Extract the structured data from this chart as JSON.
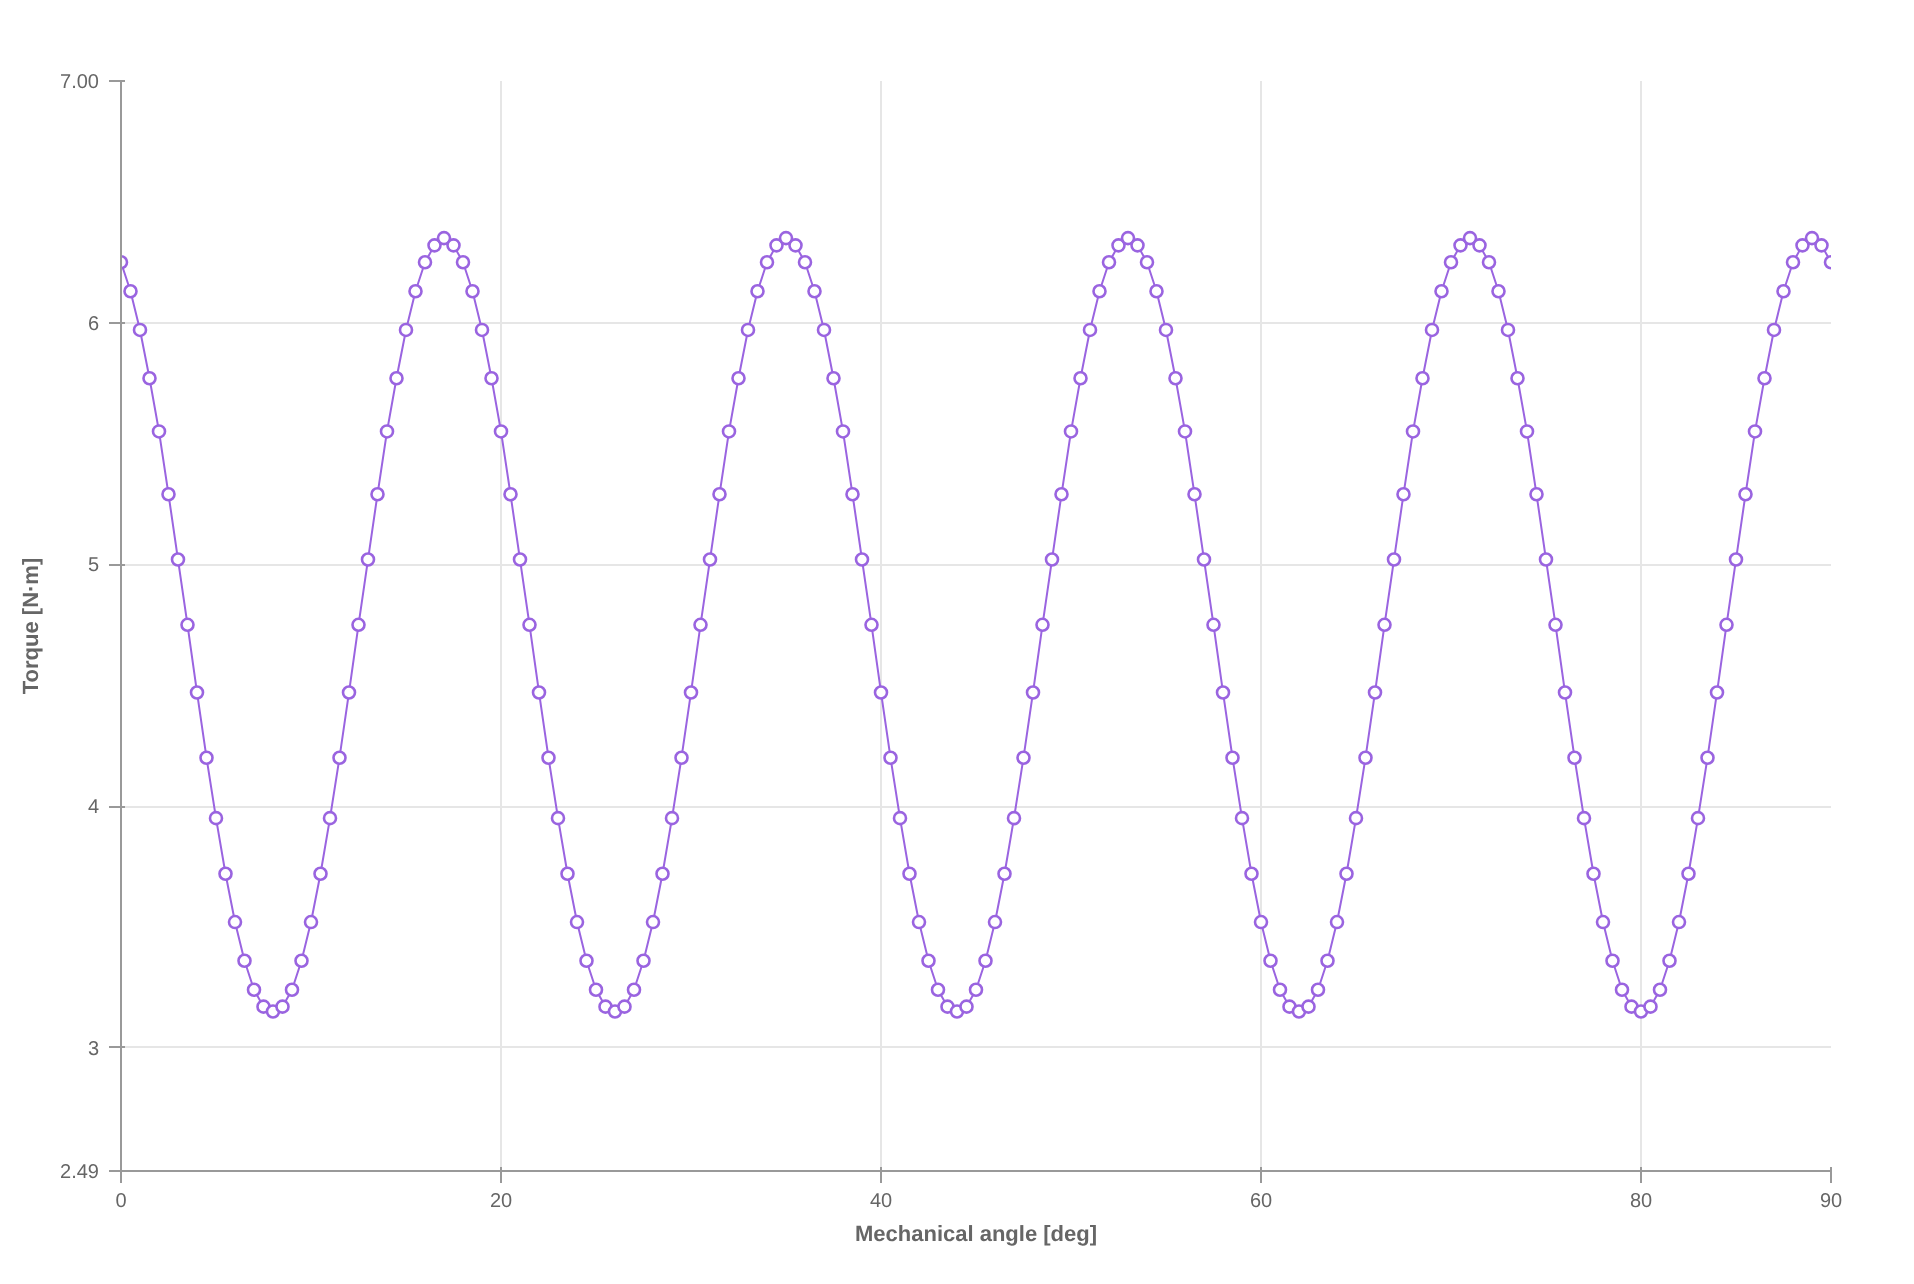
{
  "chart_data": {
    "type": "line",
    "xlabel": "Mechanical angle [deg]",
    "ylabel": "Torque [N·m]",
    "xlim": [
      0,
      90
    ],
    "ylim": [
      2.49,
      7.0
    ],
    "xticks": [
      0,
      20,
      40,
      60,
      80,
      90
    ],
    "yticks": [
      {
        "value": 2.49,
        "label": "2.49"
      },
      3,
      4,
      5,
      6,
      {
        "value": 7.0,
        "label": "7.00"
      }
    ],
    "grid": true,
    "marker": "circle",
    "line_style": "solid",
    "x": [
      0,
      0.5,
      1,
      1.5,
      2,
      2.5,
      3,
      3.5,
      4,
      4.5,
      5,
      5.5,
      6,
      6.5,
      7,
      7.5,
      8,
      8.5,
      9,
      9.5,
      10,
      10.5,
      11,
      11.5,
      12,
      12.5,
      13,
      13.5,
      14,
      14.5,
      15,
      15.5,
      16,
      16.5,
      17,
      17.5,
      18,
      18.5,
      19,
      19.5,
      20,
      20.5,
      21,
      21.5,
      22,
      22.5,
      23,
      23.5,
      24,
      24.5,
      25,
      25.5,
      26,
      26.5,
      27,
      27.5,
      28,
      28.5,
      29,
      29.5,
      30,
      30.5,
      31,
      31.5,
      32,
      32.5,
      33,
      33.5,
      34,
      34.5,
      35,
      35.5,
      36,
      36.5,
      37,
      37.5,
      38,
      38.5,
      39,
      39.5,
      40,
      40.5,
      41,
      41.5,
      42,
      42.5,
      43,
      43.5,
      44,
      44.5,
      45,
      45.5,
      46,
      46.5,
      47,
      47.5,
      48,
      48.5,
      49,
      49.5,
      50,
      50.5,
      51,
      51.5,
      52,
      52.5,
      53,
      53.5,
      54,
      54.5,
      55,
      55.5,
      56,
      56.5,
      57,
      57.5,
      58,
      58.5,
      59,
      59.5,
      60,
      60.5,
      61,
      61.5,
      62,
      62.5,
      63,
      63.5,
      64,
      64.5,
      65,
      65.5,
      66,
      66.5,
      67,
      67.5,
      68,
      68.5,
      69,
      69.5,
      70,
      70.5,
      71,
      71.5,
      72,
      72.5,
      73,
      73.5,
      74,
      74.5,
      75,
      75.5,
      76,
      76.5,
      77,
      77.5,
      78,
      78.5,
      79,
      79.5,
      80,
      80.5,
      81,
      81.5,
      82,
      82.5,
      83,
      83.5,
      84,
      84.5,
      85,
      85.5,
      86,
      86.5,
      87,
      87.5,
      88,
      88.5,
      89,
      89.5,
      90
    ],
    "series": [
      {
        "color": "#9a64e0",
        "values": [
          6.25,
          6.13,
          5.97,
          5.77,
          5.55,
          5.29,
          5.02,
          4.75,
          4.47,
          4.2,
          3.95,
          3.72,
          3.52,
          3.36,
          3.24,
          3.17,
          3.15,
          3.17,
          3.24,
          3.36,
          3.52,
          3.72,
          3.95,
          4.2,
          4.47,
          4.75,
          5.02,
          5.29,
          5.55,
          5.77,
          5.97,
          6.13,
          6.25,
          6.32,
          6.35,
          6.32,
          6.25,
          6.13,
          5.97,
          5.77,
          5.55,
          5.29,
          5.02,
          4.75,
          4.47,
          4.2,
          3.95,
          3.72,
          3.52,
          3.36,
          3.24,
          3.17,
          3.15,
          3.17,
          3.24,
          3.36,
          3.52,
          3.72,
          3.95,
          4.2,
          4.47,
          4.75,
          5.02,
          5.29,
          5.55,
          5.77,
          5.97,
          6.13,
          6.25,
          6.32,
          6.35,
          6.32,
          6.25,
          6.13,
          5.97,
          5.77,
          5.55,
          5.29,
          5.02,
          4.75,
          4.47,
          4.2,
          3.95,
          3.72,
          3.52,
          3.36,
          3.24,
          3.17,
          3.15,
          3.17,
          3.24,
          3.36,
          3.52,
          3.72,
          3.95,
          4.2,
          4.47,
          4.75,
          5.02,
          5.29,
          5.55,
          5.77,
          5.97,
          6.13,
          6.25,
          6.32,
          6.35,
          6.32,
          6.25,
          6.13,
          5.97,
          5.77,
          5.55,
          5.29,
          5.02,
          4.75,
          4.47,
          4.2,
          3.95,
          3.72,
          3.52,
          3.36,
          3.24,
          3.17,
          3.15,
          3.17,
          3.24,
          3.36,
          3.52,
          3.72,
          3.95,
          4.2,
          4.47,
          4.75,
          5.02,
          5.29,
          5.55,
          5.77,
          5.97,
          6.13,
          6.25,
          6.32,
          6.35,
          6.32,
          6.25,
          6.13,
          5.97,
          5.77,
          5.55,
          5.29,
          5.02,
          4.75,
          4.47,
          4.2,
          3.95,
          3.72,
          3.52,
          3.36,
          3.24,
          3.17,
          3.15,
          3.17,
          3.24,
          3.36,
          3.52,
          3.72,
          3.95,
          4.2,
          4.47,
          4.75,
          5.02,
          5.29,
          5.55,
          5.77,
          5.97,
          6.13,
          6.25,
          6.32,
          6.35,
          6.32,
          6.25
        ]
      }
    ]
  }
}
